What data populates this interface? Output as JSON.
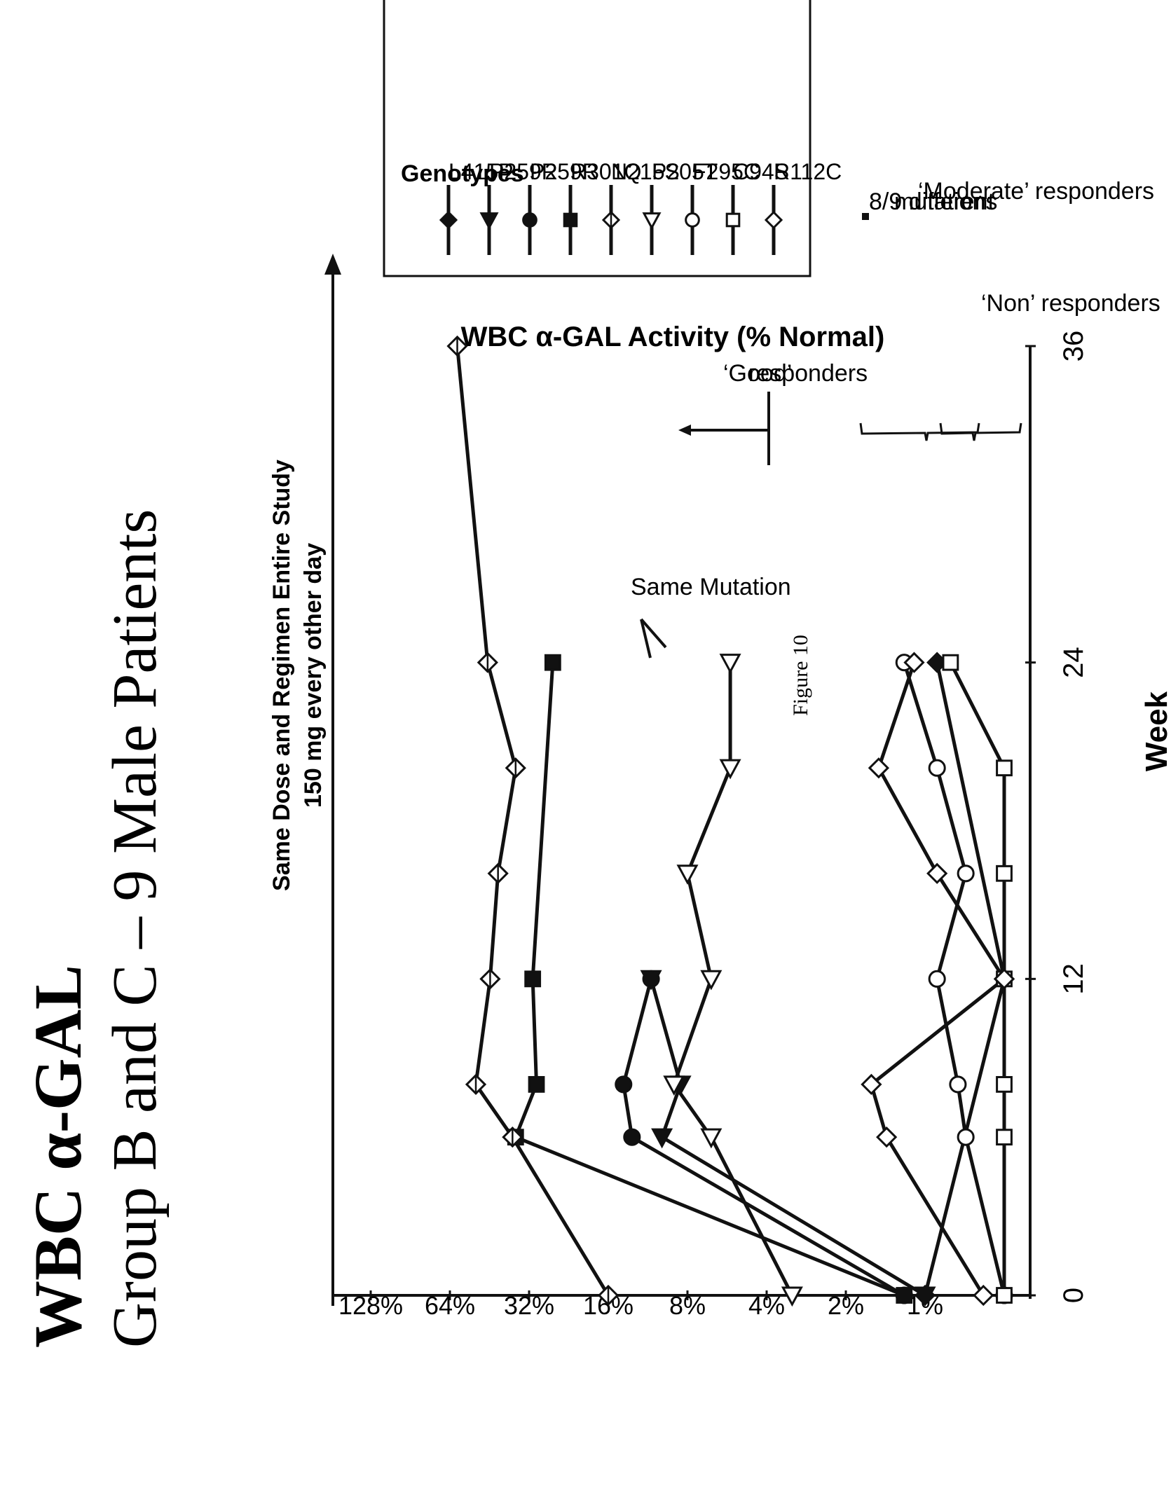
{
  "figure_label": "Figure 10",
  "title_line1": "WBC α-GAL",
  "title_line2": "Group B and C – 9 Male Patients",
  "dose_line1": "Same Dose and Regimen Entire Study",
  "dose_line2": "150 mg every other day",
  "annotations": {
    "same_mutation": "Same Mutation",
    "good_line1": "‘Good’",
    "good_line2": "responders",
    "moderate": "‘Moderate’ responders",
    "non": "‘Non’ responders",
    "note_line1": "8/9 different",
    "note_line2": "mutations"
  },
  "colors": {
    "line": "#111111",
    "background": "#ffffff"
  },
  "chart_data": {
    "type": "line",
    "title": "",
    "xlabel": "Week",
    "ylabel": "WBC α-GAL Activity (% Normal)",
    "x_ticks": [
      0,
      12,
      24,
      36
    ],
    "y_ticks": [
      "1%",
      "2%",
      "4%",
      "8%",
      "16%",
      "32%",
      "64%",
      "128%"
    ],
    "y_scale": "log2",
    "xlim": [
      0,
      36
    ],
    "legend": {
      "title": "Genotypes",
      "placement": "top-right"
    },
    "series": [
      {
        "name": "L415P",
        "marker": "filled-diamond",
        "x": [
          0,
          12,
          24
        ],
        "y": [
          1.0,
          0.5,
          0.9
        ]
      },
      {
        "name": "P259R",
        "marker": "filled-triangle",
        "x": [
          0,
          6,
          8,
          12
        ],
        "y": [
          1.0,
          10.0,
          8.5,
          11.0
        ]
      },
      {
        "name": "P259R",
        "marker": "filled-circle",
        "x": [
          0,
          6,
          8,
          12
        ],
        "y": [
          1.2,
          13.0,
          14.0,
          11.0
        ]
      },
      {
        "name": "R301Q",
        "marker": "filled-square",
        "x": [
          0,
          6,
          8,
          12,
          24
        ],
        "y": [
          1.2,
          36.0,
          30.0,
          31.0,
          26.0
        ]
      },
      {
        "name": "N215S",
        "marker": "open-diamond-cross",
        "x": [
          0,
          6,
          8,
          12,
          16,
          20,
          24,
          36
        ],
        "y": [
          16.0,
          37.0,
          51.0,
          45.0,
          42.0,
          36.0,
          46.0,
          60.0
        ]
      },
      {
        "name": "P205T",
        "marker": "open-triangle",
        "x": [
          0,
          6,
          8,
          12,
          16,
          20,
          24
        ],
        "y": [
          3.2,
          6.5,
          9.0,
          6.5,
          8.0,
          5.5,
          5.5
        ]
      },
      {
        "name": "F295C",
        "marker": "open-circle",
        "x": [
          0,
          6,
          8,
          12,
          16,
          20,
          24
        ],
        "y": [
          0.5,
          0.7,
          0.75,
          0.9,
          0.7,
          0.9,
          1.2
        ]
      },
      {
        "name": "C94S",
        "marker": "open-square",
        "x": [
          0,
          6,
          8,
          12,
          16,
          20,
          24
        ],
        "y": [
          0.5,
          0.5,
          0.5,
          0.5,
          0.5,
          0.5,
          0.8
        ]
      },
      {
        "name": "R112C",
        "marker": "open-diamond",
        "x": [
          0,
          6,
          8,
          12,
          16,
          20,
          24
        ],
        "y": [
          0.6,
          1.4,
          1.6,
          0.5,
          0.9,
          1.5,
          1.1
        ]
      }
    ]
  }
}
